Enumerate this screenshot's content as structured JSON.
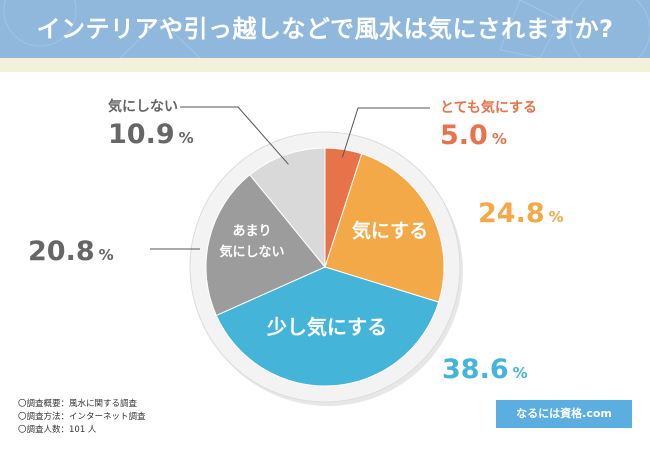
{
  "header": {
    "title": "インテリアや引っ越しなどで風水は気にされますか?",
    "bg_color": "#8fb8dc"
  },
  "chart_data": {
    "type": "pie",
    "title": "インテリアや引っ越しなどで風水は気にされますか?",
    "start": "12 o'clock, clockwise",
    "slices": [
      {
        "label": "とても気にする",
        "value": 5.0,
        "display": "5.0%",
        "color": "#e8734a",
        "label_color": "#e8734a",
        "label_outside": true
      },
      {
        "label": "気にする",
        "value": 24.8,
        "display": "24.8%",
        "color": "#f4a949",
        "label_color": "#f4a949",
        "label_outside": false
      },
      {
        "label": "少し気にする",
        "value": 38.6,
        "display": "38.6%",
        "color": "#45b4d9",
        "label_color": "#45b4d9",
        "label_outside": false
      },
      {
        "label": "あまり気にしない",
        "value": 20.8,
        "display": "20.8%",
        "color": "#9c9c9c",
        "label_color": "#666666",
        "label_outside": false,
        "label_lines": [
          "あまり",
          "気にしない"
        ]
      },
      {
        "label": "気にしない",
        "value": 10.9,
        "display": "10.9%",
        "color": "#d9d9d9",
        "label_color": "#666666",
        "label_outside": true
      }
    ]
  },
  "survey": {
    "overview": "〇調査概要：風水に関する調査",
    "method": "〇調査方法：インターネット調査",
    "count": "〇調査人数：101 人"
  },
  "brand": {
    "name": "なるには資格.com",
    "color": "#5aaee0"
  }
}
